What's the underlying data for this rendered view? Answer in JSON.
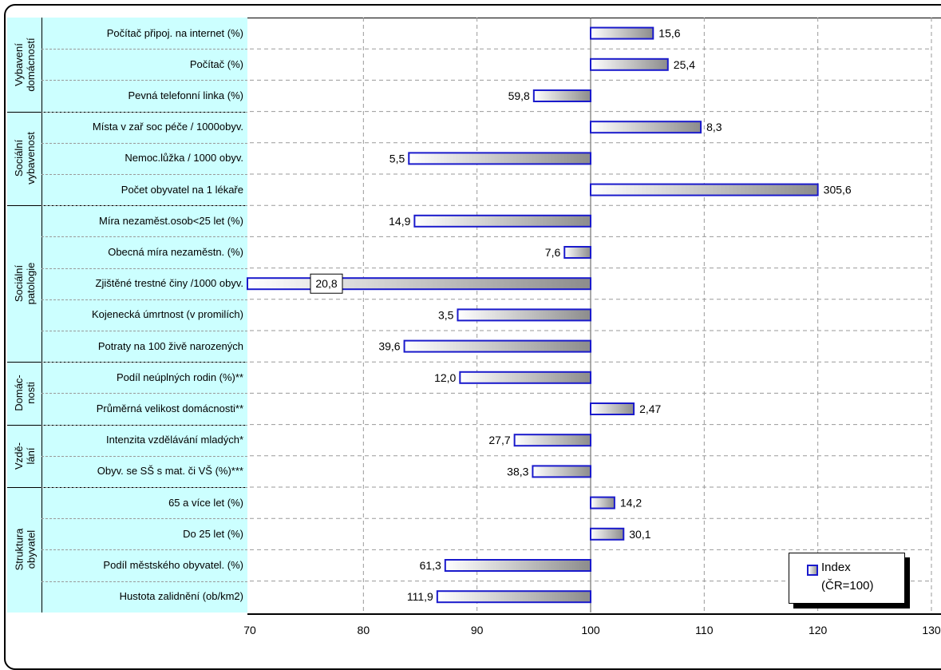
{
  "chart_data": {
    "type": "bar",
    "orientation": "horizontal",
    "xlim": [
      70,
      130
    ],
    "x_ticks": [
      70,
      80,
      90,
      100,
      110,
      120,
      130
    ],
    "baseline": 100,
    "grid": true,
    "legend_position": "bottom-right",
    "legend": {
      "line1": "Index",
      "line2": "(ČR=100)"
    },
    "bar_color": "#1a1acc",
    "groups": [
      {
        "name": "Vybavení domácností",
        "count": 3
      },
      {
        "name": "Sociální vybavenost",
        "count": 3
      },
      {
        "name": "Sociální patologie",
        "count": 5
      },
      {
        "name": "Domác-nosti",
        "count": 2
      },
      {
        "name": "Vzdě-lání",
        "count": 2
      },
      {
        "name": "Struktura obyvatel",
        "count": 4
      }
    ],
    "categories": [
      "Počítač připoj. na internet (%)",
      "Počítač (%)",
      "Pevná telefonní linka (%)",
      "Místa v zař soc péče / 1000obyv.",
      "Nemoc.lůžka / 1000 obyv.",
      "Počet obyvatel na 1 lékaře",
      "Míra nezaměst.osob<25 let  (%)",
      "Obecná míra nezaměstn. (%)",
      "Zjištěné trestné činy /1000 obyv.",
      "Kojenecká úmrtnost (v promilích)",
      "Potraty na 100 živě narozených",
      "Podíl neúplných rodin  (%)**",
      "Průměrná velikost domácnosti**",
      "Intenzita vzdělávání mladých*",
      "Obyv. se SŠ s mat. či VŠ  (%)***",
      "65 a více let (%)",
      "Do 25 let (%)",
      "Podíl městského obyvatel. (%)",
      "Hustota zalidnění (ob/km2)"
    ],
    "index_values": [
      105.5,
      106.8,
      95.0,
      109.7,
      84.0,
      120.0,
      84.5,
      97.7,
      52.0,
      88.3,
      83.6,
      88.5,
      103.8,
      93.3,
      94.9,
      102.1,
      102.9,
      87.2,
      86.5
    ],
    "value_labels": [
      "15,6",
      "25,4",
      "59,8",
      "8,3",
      "5,5",
      "305,6",
      "14,9",
      "7,6",
      "20,8",
      "3,5",
      "39,6",
      "12,0",
      "2,47",
      "27,7",
      "38,3",
      "14,2",
      "30,1",
      "61,3",
      "111,9"
    ]
  }
}
